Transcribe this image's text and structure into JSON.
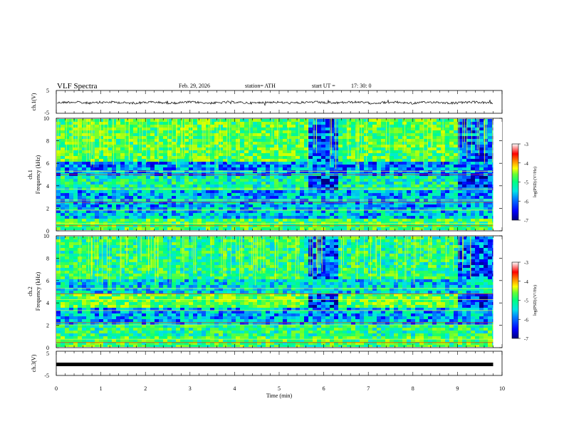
{
  "header": {
    "title": "VLF Spectra",
    "date": "Feb. 29, 2026",
    "station": "station= ATH",
    "start": "start UT =",
    "start_time": "17: 30: 0"
  },
  "chart_data": [
    {
      "type": "line",
      "id": "ch1",
      "ylabel": "ch.1(V)",
      "ylim": [
        -5,
        5
      ],
      "y_ticks": [
        "5",
        "-5"
      ],
      "xlim": [
        0,
        10
      ],
      "note": "noisy trace near 0 V with amplitude about ±1 V"
    },
    {
      "type": "heatmap",
      "id": "ch1-spectrogram",
      "ylabel": "ch.1 Frequency (kHz)",
      "ylim": [
        0,
        10
      ],
      "y_ticks": [
        "0",
        "2",
        "4",
        "6",
        "8",
        "10"
      ],
      "xlim": [
        0,
        10
      ],
      "colorbar": {
        "label": "log(PSD) (V²/Hz)",
        "range": [
          -7,
          -3
        ],
        "ticks": [
          "-3",
          "-4",
          "-5",
          "-6",
          "-7"
        ]
      },
      "quiet_intervals_min": [
        [
          5.65,
          6.25
        ],
        [
          9.0,
          9.8
        ]
      ]
    },
    {
      "type": "heatmap",
      "id": "ch2-spectrogram",
      "ylabel": "ch.2 Frequency (kHz)",
      "ylim": [
        0,
        10
      ],
      "y_ticks": [
        "0",
        "2",
        "4",
        "6",
        "8",
        "10"
      ],
      "xlim": [
        0,
        10
      ],
      "colorbar": {
        "label": "log(PSD) (V²/Hz)",
        "range": [
          -7,
          -3
        ],
        "ticks": [
          "-3",
          "-4",
          "-5",
          "-6",
          "-7"
        ]
      },
      "quiet_intervals_min": [
        [
          5.65,
          6.25
        ],
        [
          9.0,
          9.8
        ]
      ]
    },
    {
      "type": "line",
      "id": "ch3",
      "ylabel": "ch.3(V)",
      "ylim": [
        -5,
        5
      ],
      "y_ticks": [
        "5",
        "-5"
      ],
      "xlim": [
        0,
        10
      ],
      "note": "flat trace near -1 V"
    }
  ],
  "x_axis": {
    "label": "Time (min)",
    "ticks": [
      "0",
      "1",
      "2",
      "3",
      "4",
      "5",
      "6",
      "7",
      "8",
      "9",
      "10"
    ],
    "data_end_min": 9.8
  },
  "colors": [
    "#00007f",
    "#0000ff",
    "#0080ff",
    "#00e5e5",
    "#00ff80",
    "#66ff33",
    "#ccff00",
    "#ffff00",
    "#ff8000",
    "#ff0000",
    "#ffffff"
  ]
}
